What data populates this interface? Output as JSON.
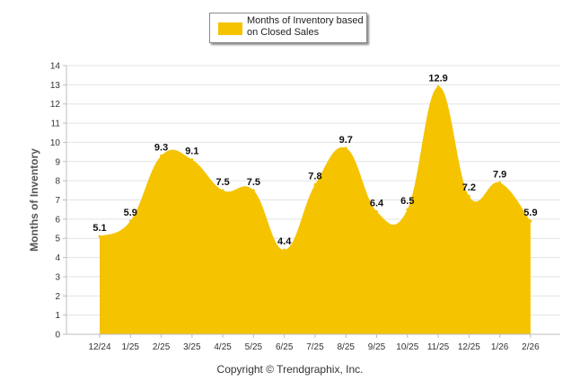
{
  "legend": {
    "label": "Months of Inventory based on Closed Sales"
  },
  "footer": {
    "copyright": "Copyright © Trendgraphix, Inc."
  },
  "chart_data": {
    "type": "area",
    "title": "",
    "xlabel": "",
    "ylabel": "Months of Inventory",
    "ylim": [
      0,
      14
    ],
    "yticks": [
      0,
      1,
      2,
      3,
      4,
      5,
      6,
      7,
      8,
      9,
      10,
      11,
      12,
      13,
      14
    ],
    "grid": true,
    "legend_position": "top-center",
    "categories": [
      "12/24",
      "1/25",
      "2/25",
      "3/25",
      "4/25",
      "5/25",
      "6/25",
      "7/25",
      "8/25",
      "9/25",
      "10/25",
      "11/25",
      "12/25",
      "1/26",
      "2/26"
    ],
    "series": [
      {
        "name": "Months of Inventory based on Closed Sales",
        "color": "#f5c300",
        "values": [
          5.1,
          5.9,
          9.3,
          9.1,
          7.5,
          7.5,
          4.4,
          7.8,
          9.7,
          6.4,
          6.5,
          12.9,
          7.2,
          7.9,
          5.9
        ],
        "labels": [
          "5.1",
          "5.9",
          "9.3",
          "9.1",
          "7.5",
          "7.5",
          "4.4",
          "7.8",
          "9.7",
          "6.4",
          "6.5",
          "12.9",
          "7.2",
          "7.9",
          "5.9"
        ]
      }
    ]
  }
}
